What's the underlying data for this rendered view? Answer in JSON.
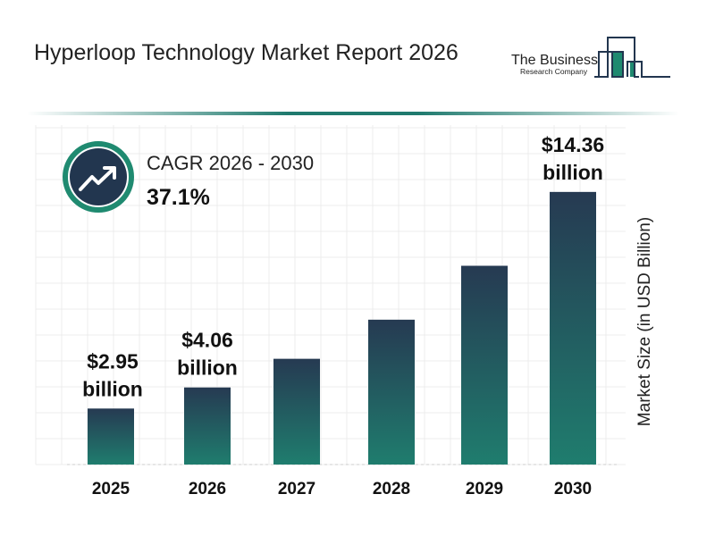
{
  "title": "Hyperloop Technology Market Report 2026",
  "logo": {
    "line1": "The Business",
    "line2": "Research Company"
  },
  "cagr": {
    "label": "CAGR 2026 - 2030",
    "value": "37.1%",
    "icon": "trending-up-icon"
  },
  "colors": {
    "bar_top": "#263a52",
    "bar_bottom": "#1f7d6e",
    "accent": "#1f8a70",
    "circle": "#22364f"
  },
  "chart_data": {
    "type": "bar",
    "title": "",
    "xlabel": "",
    "ylabel": "Market Size (in USD Billion)",
    "categories": [
      "2025",
      "2026",
      "2027",
      "2028",
      "2029",
      "2030"
    ],
    "values": [
      2.95,
      4.06,
      5.57,
      7.63,
      10.47,
      14.36
    ],
    "data_labels": [
      "$2.95 billion",
      "$4.06 billion",
      "",
      "",
      "",
      "$14.36 billion"
    ],
    "ylim": [
      0,
      16
    ],
    "grid": true
  }
}
